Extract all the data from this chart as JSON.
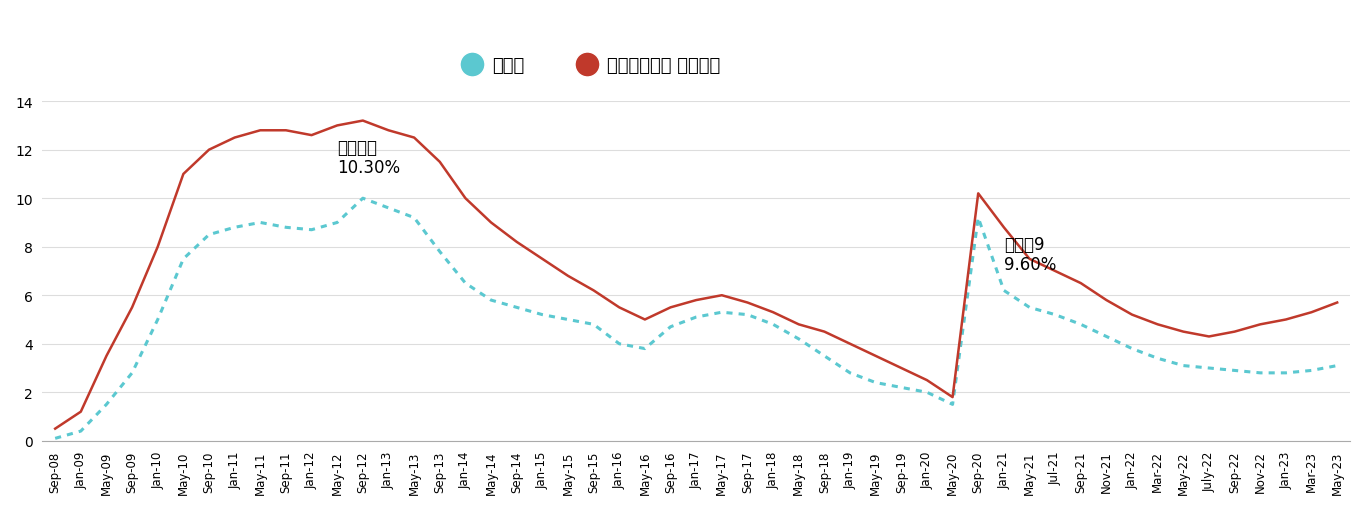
{
  "labels": [
    "Sep-08",
    "Jan-09",
    "May-09",
    "Sep-09",
    "Jan-10",
    "May-10",
    "Sep-10",
    "Jan-11",
    "May-11",
    "Sep-11",
    "Jan-12",
    "May-12",
    "Sep-12",
    "Jan-13",
    "May-13",
    "Sep-13",
    "Jan-14",
    "May-14",
    "Sep-14",
    "Jan-15",
    "May-15",
    "Sep-15",
    "Jan-16",
    "May-16",
    "Sep-16",
    "Jan-17",
    "May-17",
    "Sep-17",
    "Jan-18",
    "May-18",
    "Sep-18",
    "Jan-19",
    "May-19",
    "Sep-19",
    "Jan-20",
    "May-20",
    "Sep-20",
    "Jan-21",
    "May-21",
    "Jul-21",
    "Sep-21",
    "Nov-21",
    "Jan-22",
    "Mar-22",
    "May-22",
    "July-22",
    "Sep-22",
    "Nov-22",
    "Jan-23",
    "Mar-23",
    "May-23"
  ],
  "delinquency": [
    0.1,
    0.4,
    1.5,
    2.8,
    5.0,
    7.5,
    8.5,
    8.8,
    9.0,
    8.8,
    8.7,
    9.0,
    10.0,
    9.6,
    9.2,
    7.8,
    6.5,
    5.8,
    5.5,
    5.2,
    5.0,
    4.8,
    4.0,
    3.8,
    4.7,
    5.1,
    5.3,
    5.2,
    4.8,
    4.2,
    3.5,
    2.8,
    2.4,
    2.2,
    2.0,
    1.5,
    9.2,
    6.2,
    5.5,
    5.2,
    4.8,
    4.3,
    3.8,
    3.4,
    3.1,
    3.0,
    2.9,
    2.8,
    2.8,
    2.9,
    3.1
  ],
  "watchlist": [
    0.5,
    1.2,
    3.5,
    5.5,
    8.0,
    11.0,
    12.0,
    12.5,
    12.8,
    12.8,
    12.6,
    13.0,
    13.2,
    12.8,
    12.5,
    11.5,
    10.0,
    9.0,
    8.2,
    7.5,
    6.8,
    6.2,
    5.5,
    5.0,
    5.5,
    5.8,
    6.0,
    5.7,
    5.3,
    4.8,
    4.5,
    4.0,
    3.5,
    3.0,
    2.5,
    1.8,
    10.2,
    8.8,
    7.5,
    7.0,
    6.5,
    5.8,
    5.2,
    4.8,
    4.5,
    4.3,
    4.5,
    4.8,
    5.0,
    5.3,
    5.7
  ],
  "annotation1_text": "금융위기\n10.30%",
  "annotation1_xi": 11,
  "annotation1_yi": 12.5,
  "annotation2_text": "코로놑9\n9.60%",
  "annotation2_xi": 37,
  "annotation2_yi": 8.5,
  "legend1_label": "연체율",
  "legend2_label": "특별관리회사 이전비율",
  "line1_color": "#5BC8D0",
  "line2_color": "#C0392B",
  "ylim": [
    0,
    14
  ],
  "yticks": [
    0,
    2,
    4,
    6,
    8,
    10,
    12,
    14
  ],
  "bg_color": "#FFFFFF"
}
